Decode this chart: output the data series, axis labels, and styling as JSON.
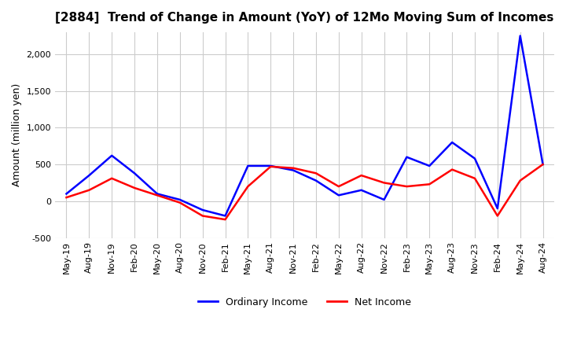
{
  "title": "[2884]  Trend of Change in Amount (YoY) of 12Mo Moving Sum of Incomes",
  "ylabel": "Amount (million yen)",
  "xlim_start": 0,
  "xlim_end": 63,
  "ylim": [
    -400,
    2300
  ],
  "yticks": [
    -500,
    0,
    500,
    1000,
    1500,
    2000
  ],
  "background_color": "#ffffff",
  "grid_color": "#cccccc",
  "ordinary_income_color": "#0000ff",
  "net_income_color": "#ff0000",
  "x_labels": [
    "May-19",
    "Aug-19",
    "Nov-19",
    "Feb-20",
    "May-20",
    "Aug-20",
    "Nov-20",
    "Feb-21",
    "May-21",
    "Aug-21",
    "Nov-21",
    "Feb-22",
    "May-22",
    "Aug-22",
    "Nov-22",
    "Feb-23",
    "May-23",
    "Aug-23",
    "Nov-23",
    "Feb-24",
    "May-24",
    "Aug-24"
  ],
  "ordinary_income": [
    100,
    350,
    620,
    380,
    100,
    20,
    -120,
    -200,
    480,
    480,
    420,
    280,
    80,
    150,
    20,
    600,
    480,
    800,
    580,
    -100,
    2250,
    500
  ],
  "net_income": [
    50,
    150,
    310,
    180,
    80,
    -20,
    -200,
    -250,
    200,
    470,
    450,
    380,
    200,
    350,
    250,
    200,
    230,
    430,
    310,
    -200,
    280,
    500
  ]
}
